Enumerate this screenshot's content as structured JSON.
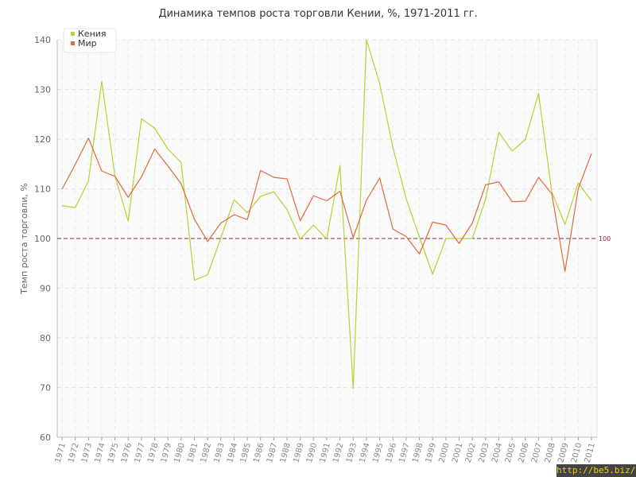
{
  "chart_data": {
    "type": "line",
    "title": "Динамика темпов роста торговли Кении, %, 1971-2011 гг.",
    "ylabel": "Темп роста торговли, %",
    "xlabel": "",
    "ylim": [
      60,
      140
    ],
    "yticks": [
      60,
      70,
      80,
      90,
      100,
      110,
      120,
      130,
      140
    ],
    "grid": true,
    "legend": "top-left",
    "reference_line": {
      "value": 100,
      "label": "100",
      "color": "#8b2a3a"
    },
    "x": [
      "1971",
      "1972",
      "1973",
      "1974",
      "1975",
      "1976",
      "1977",
      "1978",
      "1979",
      "1980",
      "1981",
      "1982",
      "1983",
      "1984",
      "1985",
      "1986",
      "1987",
      "1988",
      "1989",
      "1990",
      "1991",
      "1992",
      "1993",
      "1994",
      "1995",
      "1996",
      "1997",
      "1998",
      "1999",
      "2000",
      "2001",
      "2002",
      "2003",
      "2004",
      "2005",
      "2006",
      "2007",
      "2008",
      "2009",
      "2010",
      "2011"
    ],
    "series": [
      {
        "name": "Кения",
        "color": "#b5d334",
        "values": [
          106.6,
          106.2,
          111.6,
          131.6,
          112.6,
          103.5,
          124.1,
          122.2,
          118.0,
          115.3,
          91.6,
          92.7,
          100.1,
          107.8,
          105.2,
          108.5,
          109.4,
          105.8,
          99.9,
          102.7,
          99.9,
          114.7,
          69.8,
          140.0,
          131.2,
          118.3,
          108.0,
          100.3,
          92.8,
          100.0,
          100.0,
          100.0,
          107.9,
          121.4,
          117.6,
          119.9,
          129.2,
          109.4,
          102.8,
          111.2,
          107.6
        ]
      },
      {
        "name": "Мир",
        "color": "#e06a3c",
        "values": [
          109.9,
          114.9,
          120.2,
          113.6,
          112.5,
          108.3,
          112.4,
          118.0,
          114.6,
          111.0,
          103.9,
          99.4,
          103.1,
          104.8,
          103.8,
          113.7,
          112.3,
          112.0,
          103.6,
          108.6,
          107.6,
          109.5,
          100.2,
          107.7,
          112.2,
          101.9,
          100.4,
          96.9,
          103.3,
          102.7,
          99.0,
          103.1,
          110.8,
          111.4,
          107.4,
          107.5,
          112.3,
          109.0,
          93.4,
          110.0,
          117.1
        ]
      }
    ]
  },
  "watermark": "http://be5.biz/"
}
